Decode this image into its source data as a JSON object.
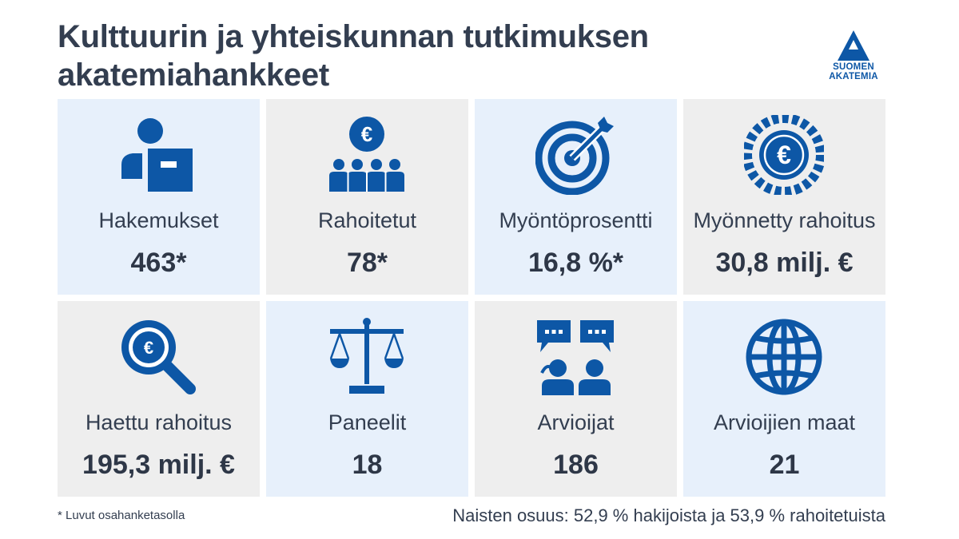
{
  "title": "Kulttuurin ja yhteiskunnan tutkimuksen akatemiahankkeet",
  "logo": {
    "line1": "SUOMEN",
    "line2": "AKATEMIA"
  },
  "colors": {
    "icon": "#0d57a6",
    "card_blue": "#e7f0fb",
    "card_grey": "#eeeeee",
    "text": "#333e50"
  },
  "cards": [
    {
      "icon": "applicant-icon",
      "label": "Hakemukset",
      "value": "463*"
    },
    {
      "icon": "funded-group-icon",
      "label": "Rahoitetut",
      "value": "78*"
    },
    {
      "icon": "target-icon",
      "label": "Myöntöprosentti",
      "value": "16,8 %*"
    },
    {
      "icon": "euro-coin-icon",
      "label": "Myönnetty rahoitus",
      "value": "30,8 milj. €"
    },
    {
      "icon": "euro-search-icon",
      "label": "Haettu rahoitus",
      "value": "195,3 milj. €"
    },
    {
      "icon": "scales-icon",
      "label": "Paneelit",
      "value": "18"
    },
    {
      "icon": "reviewers-chat-icon",
      "label": "Arvioijat",
      "value": "186"
    },
    {
      "icon": "globe-icon",
      "label": "Arvioijien maat",
      "value": "21"
    }
  ],
  "footnote": "* Luvut osahanketasolla",
  "women_share": "Naisten osuus: 52,9 % hakijoista ja 53,9 % rahoitetuista"
}
